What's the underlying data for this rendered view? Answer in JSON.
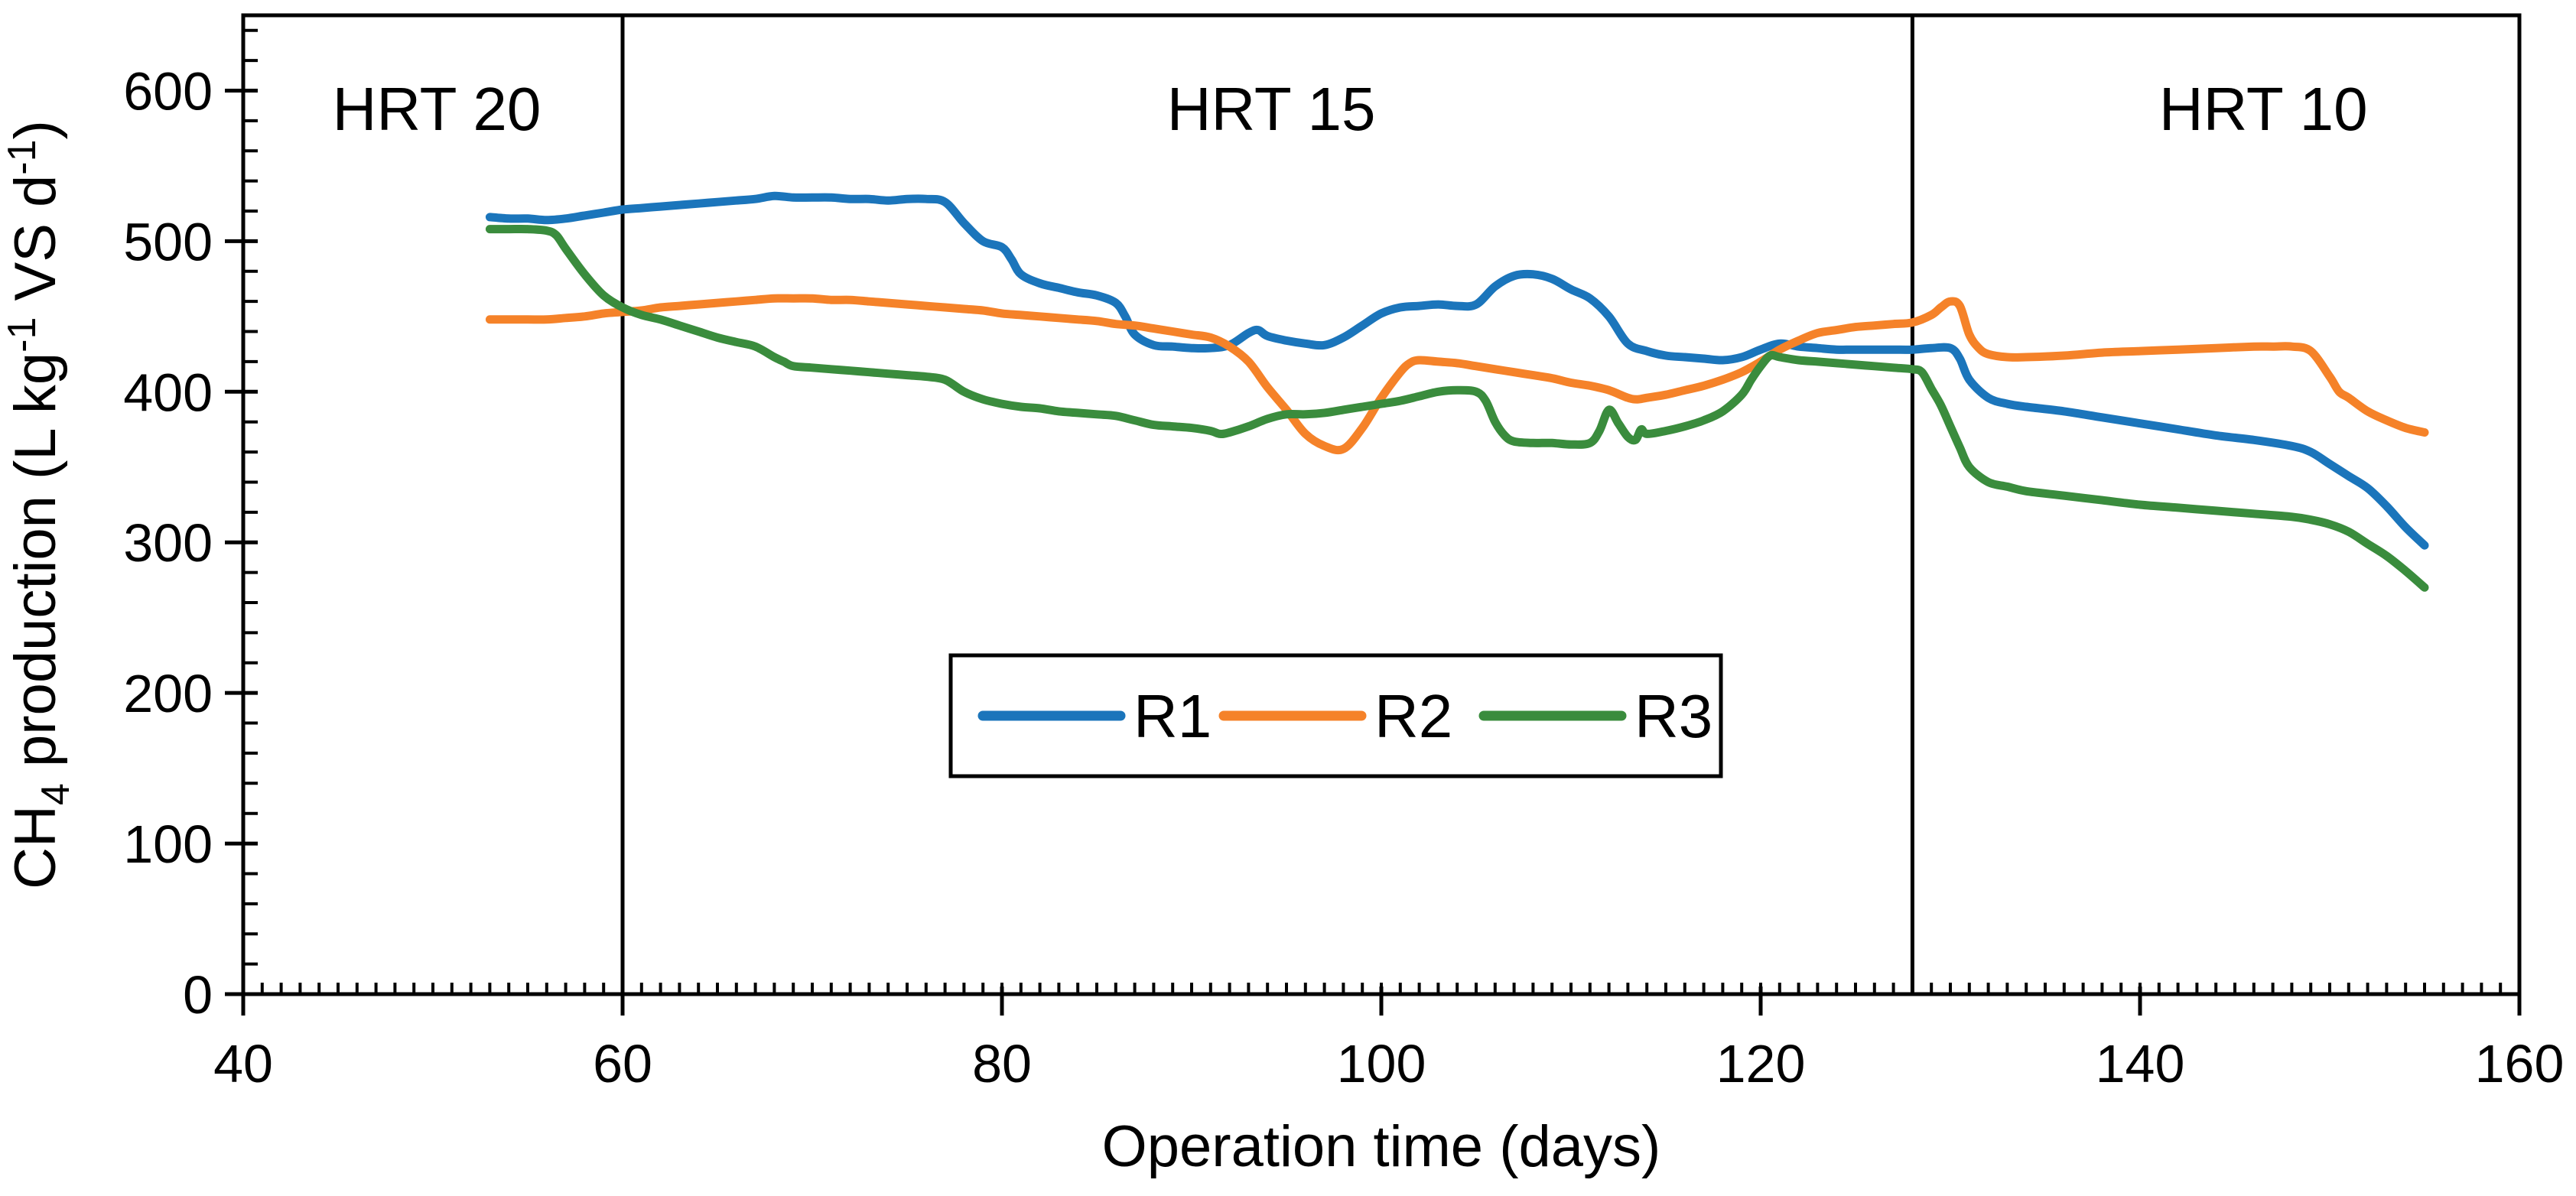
{
  "chart_data": {
    "type": "line",
    "title": "",
    "xlabel": "Operation time (days)",
    "ylabel_plain": "CH4 production (L kg-1 VS d-1)",
    "ylabel_parts": [
      {
        "t": "CH"
      },
      {
        "t": "4",
        "shift": "sub"
      },
      {
        "t": " production  (L  kg"
      },
      {
        "t": "-1",
        "shift": "sup"
      },
      {
        "t": " VS d"
      },
      {
        "t": "-1",
        "shift": "sup"
      },
      {
        "t": ")"
      }
    ],
    "xlim": [
      40,
      160
    ],
    "ylim": [
      0,
      650
    ],
    "x_ticks": [
      40,
      60,
      80,
      100,
      120,
      140,
      160
    ],
    "y_ticks": [
      0,
      100,
      200,
      300,
      400,
      500,
      600
    ],
    "x_minor_step": 1,
    "y_minor_step": 20,
    "grid": "off",
    "phase_lines_x": [
      60,
      128
    ],
    "phase_labels": [
      {
        "text": "HRT 20",
        "x_center_day": 50.2
      },
      {
        "text": "HRT 15",
        "x_center_day": 94.2
      },
      {
        "text": "HRT 10",
        "x_center_day": 146.5
      }
    ],
    "legend": {
      "position": "inside-bottom-center",
      "entries": [
        {
          "name": "R1",
          "color": "#1B75BB"
        },
        {
          "name": "R2",
          "color": "#F58229"
        },
        {
          "name": "R3",
          "color": "#3A8C3D"
        }
      ]
    },
    "series": [
      {
        "name": "R1",
        "color": "#1B75BB",
        "points": [
          [
            53,
            516
          ],
          [
            54,
            515
          ],
          [
            55,
            515
          ],
          [
            56,
            514
          ],
          [
            57,
            515
          ],
          [
            58,
            517
          ],
          [
            59,
            519
          ],
          [
            60,
            521
          ],
          [
            61,
            522
          ],
          [
            62,
            523
          ],
          [
            63,
            524
          ],
          [
            64,
            525
          ],
          [
            65,
            526
          ],
          [
            66,
            527
          ],
          [
            67,
            528
          ],
          [
            68,
            530
          ],
          [
            69,
            529
          ],
          [
            70,
            529
          ],
          [
            71,
            529
          ],
          [
            72,
            528
          ],
          [
            73,
            528
          ],
          [
            74,
            527
          ],
          [
            75,
            528
          ],
          [
            76,
            528
          ],
          [
            77,
            526
          ],
          [
            78,
            512
          ],
          [
            79,
            500
          ],
          [
            80,
            496
          ],
          [
            80.5,
            488
          ],
          [
            81,
            478
          ],
          [
            82,
            472
          ],
          [
            83,
            469
          ],
          [
            84,
            466
          ],
          [
            85,
            464
          ],
          [
            86,
            459
          ],
          [
            86.5,
            450
          ],
          [
            87,
            438
          ],
          [
            88,
            431
          ],
          [
            89,
            430
          ],
          [
            90,
            429
          ],
          [
            91,
            429
          ],
          [
            92,
            431
          ],
          [
            93,
            439
          ],
          [
            93.5,
            441
          ],
          [
            94,
            437
          ],
          [
            95,
            434
          ],
          [
            96,
            432
          ],
          [
            97,
            431
          ],
          [
            98,
            436
          ],
          [
            99,
            444
          ],
          [
            100,
            452
          ],
          [
            101,
            456
          ],
          [
            102,
            457
          ],
          [
            103,
            458
          ],
          [
            104,
            457
          ],
          [
            105,
            458
          ],
          [
            106,
            470
          ],
          [
            107,
            477
          ],
          [
            108,
            478
          ],
          [
            109,
            475
          ],
          [
            110,
            468
          ],
          [
            111,
            462
          ],
          [
            112,
            450
          ],
          [
            113,
            432
          ],
          [
            114,
            427
          ],
          [
            115,
            424
          ],
          [
            116,
            423
          ],
          [
            117,
            422
          ],
          [
            118,
            421
          ],
          [
            119,
            423
          ],
          [
            120,
            428
          ],
          [
            121,
            432
          ],
          [
            122,
            430
          ],
          [
            123,
            429
          ],
          [
            124,
            428
          ],
          [
            125,
            428
          ],
          [
            126,
            428
          ],
          [
            127,
            428
          ],
          [
            128,
            428
          ],
          [
            129,
            429
          ],
          [
            130,
            429
          ],
          [
            130.5,
            422
          ],
          [
            131,
            408
          ],
          [
            132,
            396
          ],
          [
            133,
            392
          ],
          [
            134,
            390
          ],
          [
            136,
            387
          ],
          [
            138,
            383
          ],
          [
            140,
            379
          ],
          [
            142,
            375
          ],
          [
            144,
            371
          ],
          [
            146,
            368
          ],
          [
            148,
            364
          ],
          [
            149,
            360
          ],
          [
            150,
            352
          ],
          [
            151,
            344
          ],
          [
            152,
            336
          ],
          [
            153,
            324
          ],
          [
            154,
            310
          ],
          [
            155,
            298
          ]
        ]
      },
      {
        "name": "R2",
        "color": "#F58229",
        "points": [
          [
            53,
            448
          ],
          [
            54,
            448
          ],
          [
            55,
            448
          ],
          [
            56,
            448
          ],
          [
            57,
            449
          ],
          [
            58,
            450
          ],
          [
            59,
            452
          ],
          [
            60,
            453
          ],
          [
            61,
            454
          ],
          [
            62,
            456
          ],
          [
            63,
            457
          ],
          [
            64,
            458
          ],
          [
            65,
            459
          ],
          [
            66,
            460
          ],
          [
            67,
            461
          ],
          [
            68,
            462
          ],
          [
            69,
            462
          ],
          [
            70,
            462
          ],
          [
            71,
            461
          ],
          [
            72,
            461
          ],
          [
            73,
            460
          ],
          [
            74,
            459
          ],
          [
            75,
            458
          ],
          [
            76,
            457
          ],
          [
            77,
            456
          ],
          [
            78,
            455
          ],
          [
            79,
            454
          ],
          [
            80,
            452
          ],
          [
            81,
            451
          ],
          [
            82,
            450
          ],
          [
            83,
            449
          ],
          [
            84,
            448
          ],
          [
            85,
            447
          ],
          [
            86,
            445
          ],
          [
            87,
            444
          ],
          [
            88,
            442
          ],
          [
            89,
            440
          ],
          [
            90,
            438
          ],
          [
            91,
            436
          ],
          [
            92,
            430
          ],
          [
            93,
            420
          ],
          [
            94,
            403
          ],
          [
            95,
            388
          ],
          [
            96,
            372
          ],
          [
            97,
            364
          ],
          [
            98,
            362
          ],
          [
            99,
            376
          ],
          [
            100,
            396
          ],
          [
            101,
            413
          ],
          [
            101.5,
            419
          ],
          [
            102,
            421
          ],
          [
            103,
            420
          ],
          [
            104,
            419
          ],
          [
            105,
            417
          ],
          [
            106,
            415
          ],
          [
            107,
            413
          ],
          [
            108,
            411
          ],
          [
            109,
            409
          ],
          [
            110,
            406
          ],
          [
            111,
            404
          ],
          [
            112,
            401
          ],
          [
            113,
            396
          ],
          [
            113.5,
            395
          ],
          [
            114,
            396
          ],
          [
            115,
            398
          ],
          [
            116,
            401
          ],
          [
            117,
            404
          ],
          [
            118,
            408
          ],
          [
            119,
            413
          ],
          [
            120,
            420
          ],
          [
            121,
            428
          ],
          [
            122,
            434
          ],
          [
            123,
            439
          ],
          [
            124,
            441
          ],
          [
            125,
            443
          ],
          [
            126,
            444
          ],
          [
            127,
            445
          ],
          [
            128,
            446
          ],
          [
            129,
            451
          ],
          [
            129.5,
            456
          ],
          [
            130,
            460
          ],
          [
            130.5,
            457
          ],
          [
            131,
            438
          ],
          [
            131.5,
            429
          ],
          [
            132,
            425
          ],
          [
            133,
            423
          ],
          [
            134,
            423
          ],
          [
            136,
            424
          ],
          [
            138,
            426
          ],
          [
            140,
            427
          ],
          [
            142,
            428
          ],
          [
            144,
            429
          ],
          [
            146,
            430
          ],
          [
            147,
            430
          ],
          [
            148,
            430
          ],
          [
            149,
            427
          ],
          [
            150,
            410
          ],
          [
            150.5,
            400
          ],
          [
            151,
            396
          ],
          [
            152,
            387
          ],
          [
            153,
            381
          ],
          [
            154,
            376
          ],
          [
            155,
            373
          ]
        ]
      },
      {
        "name": "R3",
        "color": "#3A8C3D",
        "points": [
          [
            53,
            508
          ],
          [
            54,
            508
          ],
          [
            55,
            508
          ],
          [
            56,
            507
          ],
          [
            56.5,
            504
          ],
          [
            57,
            495
          ],
          [
            58,
            478
          ],
          [
            59,
            464
          ],
          [
            60,
            456
          ],
          [
            61,
            451
          ],
          [
            62,
            448
          ],
          [
            63,
            444
          ],
          [
            64,
            440
          ],
          [
            65,
            436
          ],
          [
            66,
            433
          ],
          [
            67,
            430
          ],
          [
            68,
            423
          ],
          [
            68.5,
            420
          ],
          [
            69,
            417
          ],
          [
            70,
            416
          ],
          [
            71,
            415
          ],
          [
            72,
            414
          ],
          [
            73,
            413
          ],
          [
            74,
            412
          ],
          [
            75,
            411
          ],
          [
            76,
            410
          ],
          [
            77,
            408
          ],
          [
            78,
            400
          ],
          [
            79,
            395
          ],
          [
            80,
            392
          ],
          [
            81,
            390
          ],
          [
            82,
            389
          ],
          [
            83,
            387
          ],
          [
            84,
            386
          ],
          [
            85,
            385
          ],
          [
            86,
            384
          ],
          [
            87,
            381
          ],
          [
            88,
            378
          ],
          [
            89,
            377
          ],
          [
            90,
            376
          ],
          [
            91,
            374
          ],
          [
            91.5,
            372
          ],
          [
            92,
            373
          ],
          [
            93,
            377
          ],
          [
            94,
            382
          ],
          [
            95,
            385
          ],
          [
            96,
            385
          ],
          [
            97,
            386
          ],
          [
            98,
            388
          ],
          [
            99,
            390
          ],
          [
            100,
            392
          ],
          [
            101,
            394
          ],
          [
            102,
            397
          ],
          [
            103,
            400
          ],
          [
            104,
            401
          ],
          [
            105,
            400
          ],
          [
            105.5,
            394
          ],
          [
            106,
            380
          ],
          [
            106.5,
            371
          ],
          [
            107,
            367
          ],
          [
            108,
            366
          ],
          [
            109,
            366
          ],
          [
            110,
            365
          ],
          [
            111,
            366
          ],
          [
            111.5,
            374
          ],
          [
            112,
            388
          ],
          [
            112.5,
            379
          ],
          [
            113,
            370
          ],
          [
            113.4,
            368
          ],
          [
            113.7,
            375
          ],
          [
            114,
            372
          ],
          [
            115,
            374
          ],
          [
            116,
            377
          ],
          [
            117,
            381
          ],
          [
            118,
            387
          ],
          [
            119,
            398
          ],
          [
            119.5,
            408
          ],
          [
            120,
            417
          ],
          [
            120.5,
            424
          ],
          [
            121,
            423
          ],
          [
            122,
            421
          ],
          [
            123,
            420
          ],
          [
            124,
            419
          ],
          [
            125,
            418
          ],
          [
            126,
            417
          ],
          [
            127,
            416
          ],
          [
            128,
            415
          ],
          [
            128.5,
            413
          ],
          [
            129,
            402
          ],
          [
            129.5,
            391
          ],
          [
            130,
            377
          ],
          [
            130.5,
            363
          ],
          [
            131,
            350
          ],
          [
            132,
            340
          ],
          [
            133,
            337
          ],
          [
            134,
            334
          ],
          [
            136,
            331
          ],
          [
            138,
            328
          ],
          [
            140,
            325
          ],
          [
            142,
            323
          ],
          [
            144,
            321
          ],
          [
            146,
            319
          ],
          [
            148,
            317
          ],
          [
            149,
            315
          ],
          [
            150,
            312
          ],
          [
            151,
            307
          ],
          [
            152,
            299
          ],
          [
            153,
            291
          ],
          [
            154,
            281
          ],
          [
            155,
            270
          ]
        ]
      }
    ]
  }
}
